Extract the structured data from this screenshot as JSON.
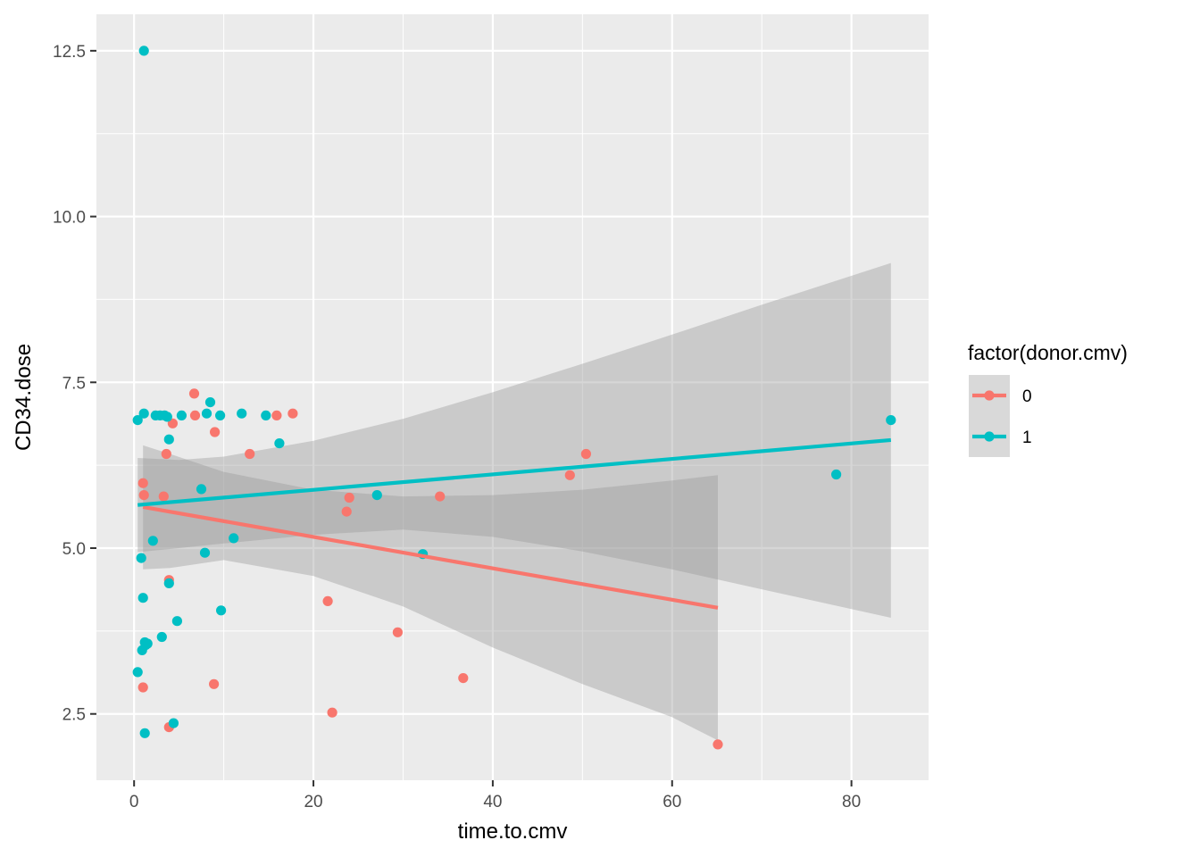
{
  "chart_data": {
    "type": "scatter",
    "title": "",
    "xlabel": "time.to.cmv",
    "ylabel": "CD34.dose",
    "xlim": [
      -4.2,
      88.6
    ],
    "ylim": [
      1.5,
      13.05
    ],
    "x_ticks": [
      0,
      20,
      40,
      60,
      80
    ],
    "y_ticks": [
      2.5,
      5.0,
      7.5,
      10.0,
      12.5
    ],
    "x_tick_labels": [
      "0",
      "20",
      "40",
      "60",
      "80"
    ],
    "y_tick_labels": [
      "2.5",
      "5.0",
      "7.5",
      "10.0",
      "12.5"
    ],
    "grid": true,
    "legend": {
      "title": "factor(donor.cmv)",
      "placement": "right"
    },
    "series": [
      {
        "name": "0",
        "color": "#F8766D",
        "points": [
          {
            "x": 1.0,
            "y": 5.98
          },
          {
            "x": 1.1,
            "y": 5.8
          },
          {
            "x": 1.0,
            "y": 2.9
          },
          {
            "x": 3.3,
            "y": 5.78
          },
          {
            "x": 3.6,
            "y": 6.42
          },
          {
            "x": 3.9,
            "y": 4.52
          },
          {
            "x": 3.9,
            "y": 2.3
          },
          {
            "x": 4.3,
            "y": 6.88
          },
          {
            "x": 6.7,
            "y": 7.33
          },
          {
            "x": 6.8,
            "y": 7.0
          },
          {
            "x": 9.0,
            "y": 6.75
          },
          {
            "x": 8.9,
            "y": 2.95
          },
          {
            "x": 12.9,
            "y": 6.42
          },
          {
            "x": 15.9,
            "y": 7.0
          },
          {
            "x": 17.7,
            "y": 7.03
          },
          {
            "x": 21.6,
            "y": 4.2
          },
          {
            "x": 22.1,
            "y": 2.52
          },
          {
            "x": 23.7,
            "y": 5.55
          },
          {
            "x": 24.0,
            "y": 5.76
          },
          {
            "x": 29.4,
            "y": 3.73
          },
          {
            "x": 34.1,
            "y": 5.78
          },
          {
            "x": 36.7,
            "y": 3.04
          },
          {
            "x": 48.6,
            "y": 6.1
          },
          {
            "x": 50.4,
            "y": 6.42
          },
          {
            "x": 65.1,
            "y": 2.04
          }
        ],
        "fit": {
          "x0": 1.0,
          "y0": 5.62,
          "x1": 65.1,
          "y1": 4.1
        },
        "band": {
          "x": [
            1.0,
            4.0,
            10.0,
            20.0,
            30.0,
            40.0,
            50.0,
            60.0,
            65.1
          ],
          "upper": [
            6.55,
            6.42,
            6.15,
            5.88,
            5.78,
            5.8,
            5.88,
            6.02,
            6.1
          ],
          "lower": [
            4.68,
            4.7,
            4.82,
            4.58,
            4.12,
            3.5,
            2.95,
            2.45,
            2.1
          ]
        }
      },
      {
        "name": "1",
        "color": "#00BFC4",
        "points": [
          {
            "x": 0.4,
            "y": 6.93
          },
          {
            "x": 1.1,
            "y": 7.03
          },
          {
            "x": 1.1,
            "y": 12.5
          },
          {
            "x": 0.8,
            "y": 4.85
          },
          {
            "x": 1.0,
            "y": 4.25
          },
          {
            "x": 1.2,
            "y": 3.58
          },
          {
            "x": 1.5,
            "y": 3.56
          },
          {
            "x": 1.3,
            "y": 3.54
          },
          {
            "x": 0.9,
            "y": 3.46
          },
          {
            "x": 0.4,
            "y": 3.13
          },
          {
            "x": 1.2,
            "y": 2.21
          },
          {
            "x": 2.1,
            "y": 5.11
          },
          {
            "x": 2.4,
            "y": 7.0
          },
          {
            "x": 2.9,
            "y": 7.0
          },
          {
            "x": 3.4,
            "y": 7.0
          },
          {
            "x": 3.7,
            "y": 6.98
          },
          {
            "x": 3.1,
            "y": 3.66
          },
          {
            "x": 3.9,
            "y": 6.64
          },
          {
            "x": 3.9,
            "y": 4.47
          },
          {
            "x": 4.4,
            "y": 2.36
          },
          {
            "x": 4.8,
            "y": 3.9
          },
          {
            "x": 5.3,
            "y": 7.0
          },
          {
            "x": 7.5,
            "y": 5.89
          },
          {
            "x": 7.9,
            "y": 4.93
          },
          {
            "x": 8.1,
            "y": 7.03
          },
          {
            "x": 8.5,
            "y": 7.2
          },
          {
            "x": 9.6,
            "y": 7.0
          },
          {
            "x": 9.7,
            "y": 4.06
          },
          {
            "x": 11.1,
            "y": 5.15
          },
          {
            "x": 12.0,
            "y": 7.03
          },
          {
            "x": 14.7,
            "y": 7.0
          },
          {
            "x": 16.2,
            "y": 6.58
          },
          {
            "x": 27.1,
            "y": 5.8
          },
          {
            "x": 32.2,
            "y": 4.91
          },
          {
            "x": 78.3,
            "y": 6.11
          },
          {
            "x": 84.4,
            "y": 6.93
          }
        ],
        "fit": {
          "x0": 0.4,
          "y0": 5.65,
          "x1": 84.4,
          "y1": 6.63
        },
        "band": {
          "x": [
            0.4,
            5.0,
            10.0,
            20.0,
            30.0,
            40.0,
            50.0,
            60.0,
            70.0,
            84.4
          ],
          "upper": [
            6.36,
            6.33,
            6.38,
            6.62,
            6.95,
            7.35,
            7.78,
            8.22,
            8.67,
            9.3
          ],
          "lower": [
            4.94,
            5.0,
            5.07,
            5.2,
            5.28,
            5.17,
            4.95,
            4.68,
            4.38,
            3.95
          ]
        }
      }
    ]
  }
}
